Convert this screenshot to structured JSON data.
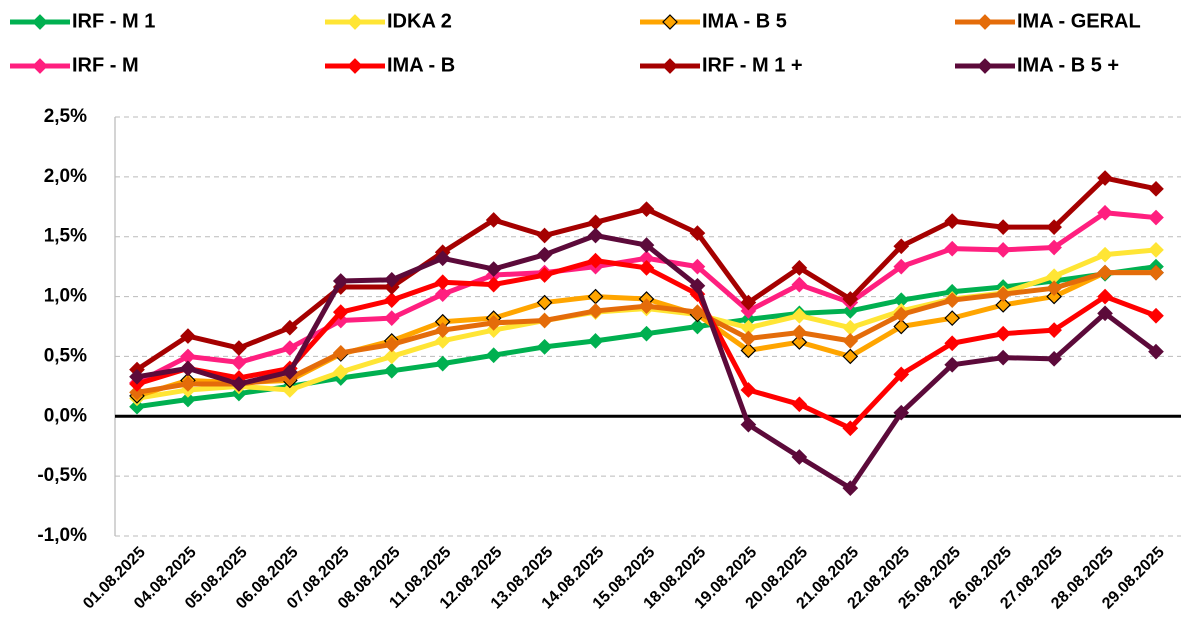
{
  "chart_data": {
    "type": "line",
    "categories": [
      "01.08.2025",
      "04.08.2025",
      "05.08.2025",
      "06.08.2025",
      "07.08.2025",
      "08.08.2025",
      "11.08.2025",
      "12.08.2025",
      "13.08.2025",
      "14.08.2025",
      "15.08.2025",
      "18.08.2025",
      "19.08.2025",
      "20.08.2025",
      "21.08.2025",
      "22.08.2025",
      "25.08.2025",
      "26.08.2025",
      "27.08.2025",
      "28.08.2025",
      "29.08.2025"
    ],
    "series": [
      {
        "name": "IRF - M 1",
        "color": "#00b050",
        "values": [
          0.08,
          0.14,
          0.19,
          0.25,
          0.32,
          0.38,
          0.44,
          0.51,
          0.58,
          0.63,
          0.69,
          0.75,
          0.81,
          0.86,
          0.88,
          0.97,
          1.04,
          1.08,
          1.13,
          1.19,
          1.25
        ]
      },
      {
        "name": "IDKA 2",
        "color": "#ffe535",
        "values": [
          0.15,
          0.22,
          0.25,
          0.22,
          0.37,
          0.5,
          0.63,
          0.72,
          0.8,
          0.87,
          0.9,
          0.85,
          0.74,
          0.84,
          0.74,
          0.88,
          0.98,
          1.03,
          1.17,
          1.35,
          1.39
        ]
      },
      {
        "name": "IMA - B 5",
        "color": "#ffa500",
        "marker_edge": "#000000",
        "values": [
          0.17,
          0.3,
          0.28,
          0.3,
          0.52,
          0.63,
          0.79,
          0.82,
          0.95,
          1.0,
          0.98,
          0.85,
          0.55,
          0.62,
          0.5,
          0.75,
          0.82,
          0.93,
          1.0,
          1.2,
          1.2
        ]
      },
      {
        "name": "IMA - GERAL",
        "color": "#e46c0a",
        "values": [
          0.2,
          0.27,
          0.27,
          0.32,
          0.53,
          0.6,
          0.72,
          0.78,
          0.8,
          0.88,
          0.92,
          0.87,
          0.65,
          0.7,
          0.63,
          0.85,
          0.97,
          1.02,
          1.07,
          1.2,
          1.2
        ]
      },
      {
        "name": "IRF - M",
        "color": "#ff1f7f",
        "values": [
          0.28,
          0.5,
          0.45,
          0.57,
          0.8,
          0.82,
          1.02,
          1.18,
          1.2,
          1.25,
          1.32,
          1.25,
          0.88,
          1.1,
          0.95,
          1.25,
          1.4,
          1.39,
          1.41,
          1.7,
          1.66
        ]
      },
      {
        "name": "IMA - B",
        "color": "#ff0000",
        "values": [
          0.27,
          0.4,
          0.32,
          0.4,
          0.87,
          0.97,
          1.12,
          1.1,
          1.18,
          1.3,
          1.24,
          1.02,
          0.22,
          0.1,
          -0.1,
          0.35,
          0.61,
          0.69,
          0.72,
          1.0,
          0.84
        ]
      },
      {
        "name": "IRF - M 1 +",
        "color": "#a50000",
        "values": [
          0.39,
          0.67,
          0.57,
          0.74,
          1.08,
          1.08,
          1.37,
          1.64,
          1.51,
          1.62,
          1.73,
          1.53,
          0.95,
          1.24,
          0.98,
          1.42,
          1.63,
          1.58,
          1.58,
          1.99,
          1.9
        ]
      },
      {
        "name": "IMA - B 5 +",
        "color": "#5c0a3a",
        "values": [
          0.33,
          0.4,
          0.27,
          0.37,
          1.13,
          1.14,
          1.32,
          1.23,
          1.35,
          1.51,
          1.43,
          1.09,
          -0.07,
          -0.34,
          -0.6,
          0.03,
          0.43,
          0.49,
          0.48,
          0.86,
          0.54
        ]
      }
    ],
    "ylim": [
      -1.0,
      2.5
    ],
    "yticks": [
      {
        "value": -1.0,
        "label": "-1,0%"
      },
      {
        "value": -0.5,
        "label": "-0,5%"
      },
      {
        "value": 0,
        "label": "0,0%"
      },
      {
        "value": 0.5,
        "label": "0,5%"
      },
      {
        "value": 1.0,
        "label": "1,0%"
      },
      {
        "value": 1.5,
        "label": "1,5%"
      },
      {
        "value": 2.0,
        "label": "2,0%"
      },
      {
        "value": 2.5,
        "label": "2,5%"
      }
    ],
    "grid": true
  }
}
